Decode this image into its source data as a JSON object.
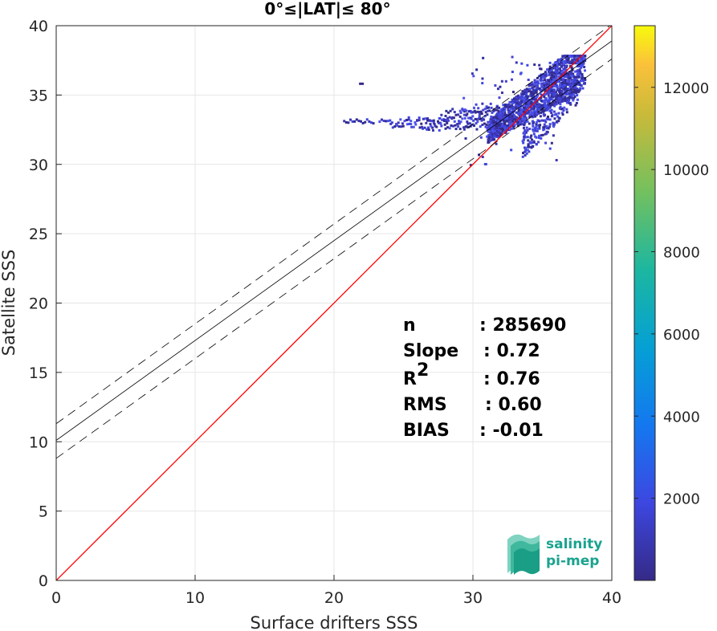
{
  "chart_data": {
    "type": "scatter",
    "title": "0°≤|LAT|≤ 80°",
    "xlabel": "Surface drifters SSS",
    "ylabel": "Satellite SSS",
    "xlim": [
      0,
      40
    ],
    "ylim": [
      0,
      40
    ],
    "xticks": [
      "0",
      "10",
      "20",
      "30",
      "40"
    ],
    "yticks": [
      "0",
      "5",
      "10",
      "15",
      "20",
      "25",
      "30",
      "35",
      "40"
    ],
    "grid": true,
    "colorbar": {
      "range": [
        0,
        13500
      ],
      "ticks": [
        "2000",
        "4000",
        "6000",
        "8000",
        "10000",
        "12000"
      ],
      "colormap": "parula"
    },
    "lines": [
      {
        "name": "1:1",
        "color": "#ff0000",
        "style": "solid",
        "intercept": 0,
        "slope": 1
      },
      {
        "name": "fit",
        "color": "#000000",
        "style": "solid",
        "intercept": 10.1,
        "slope": 0.72
      },
      {
        "name": "fit_upper",
        "color": "#000000",
        "style": "dashed",
        "intercept": 11.3,
        "slope": 0.72
      },
      {
        "name": "fit_lower",
        "color": "#000000",
        "style": "dashed",
        "intercept": 8.8,
        "slope": 0.72
      }
    ],
    "density_region": {
      "x_range": [
        20.5,
        38
      ],
      "y_range": [
        29.8,
        37.9
      ],
      "max_count_approx": 1500
    },
    "stats": [
      {
        "label": "n",
        "value": ": 285690"
      },
      {
        "label": "Slope",
        "value": ": 0.72"
      },
      {
        "label": "R",
        "sup": "2",
        "value": ": 0.76"
      },
      {
        "label": "RMS",
        "value": ": 0.60"
      },
      {
        "label": "BIAS",
        "value": ": -0.01"
      }
    ]
  },
  "logo": {
    "line1": "salinity",
    "line2": "pi-mep"
  }
}
